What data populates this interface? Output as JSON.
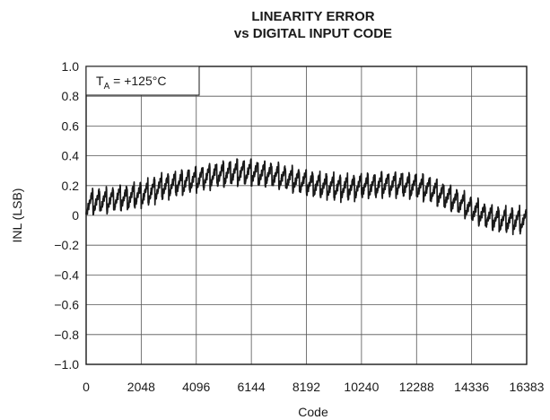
{
  "chart_data": {
    "type": "line",
    "title_line1": "LINEARITY ERROR",
    "title_line2": "vs DIGITAL INPUT CODE",
    "xlabel": "Code",
    "ylabel": "INL (LSB)",
    "annotation": {
      "prefix": "T",
      "subscript": "A",
      "suffix": " = +125°C"
    },
    "xlim": [
      0,
      16383
    ],
    "ylim": [
      -1.0,
      1.0
    ],
    "x_ticks": [
      0,
      2048,
      4096,
      6144,
      8192,
      10240,
      12288,
      14336,
      16383
    ],
    "x_tick_labels": [
      "0",
      "2048",
      "4096",
      "6144",
      "8192",
      "10240",
      "12288",
      "14336",
      "16383"
    ],
    "y_ticks": [
      1.0,
      0.8,
      0.6,
      0.4,
      0.2,
      0,
      -0.2,
      -0.4,
      -0.6,
      -0.8,
      -1.0
    ],
    "y_tick_labels": [
      "1.0",
      "0.8",
      "0.6",
      "0.4",
      "0.2",
      "0",
      "−0.2",
      "−0.4",
      "−0.6",
      "−0.8",
      "−1.0"
    ],
    "grid": true,
    "series": [
      {
        "x": [
          0,
          250,
          500,
          750,
          1000,
          1250,
          1500,
          1750,
          2000,
          2250,
          2500,
          2750,
          3000,
          3250,
          3500,
          3750,
          4000,
          4250,
          4500,
          4750,
          5000,
          5250,
          5500,
          5750,
          6000,
          6250,
          6500,
          6750,
          7000,
          7250,
          7500,
          7750,
          8000,
          8250,
          8500,
          8750,
          9000,
          9250,
          9500,
          9750,
          10000,
          10250,
          10500,
          10750,
          11000,
          11250,
          11500,
          11750,
          12000,
          12250,
          12500,
          12750,
          13000,
          13250,
          13500,
          13750,
          14000,
          14250,
          14500,
          14750,
          15000,
          15250,
          15500,
          15750,
          16000,
          16383
        ],
        "y": [
          0.08,
          0.09,
          0.1,
          0.1,
          0.11,
          0.12,
          0.12,
          0.13,
          0.14,
          0.15,
          0.17,
          0.19,
          0.2,
          0.21,
          0.22,
          0.23,
          0.24,
          0.25,
          0.26,
          0.27,
          0.28,
          0.28,
          0.29,
          0.29,
          0.29,
          0.29,
          0.28,
          0.28,
          0.27,
          0.26,
          0.25,
          0.24,
          0.23,
          0.22,
          0.21,
          0.2,
          0.2,
          0.19,
          0.19,
          0.19,
          0.19,
          0.2,
          0.2,
          0.2,
          0.21,
          0.21,
          0.21,
          0.21,
          0.2,
          0.2,
          0.19,
          0.18,
          0.16,
          0.14,
          0.12,
          0.1,
          0.08,
          0.05,
          0.03,
          0.01,
          -0.01,
          -0.02,
          -0.03,
          -0.03,
          -0.03,
          -0.04
        ]
      }
    ],
    "line_color": "#1a1a1a"
  }
}
